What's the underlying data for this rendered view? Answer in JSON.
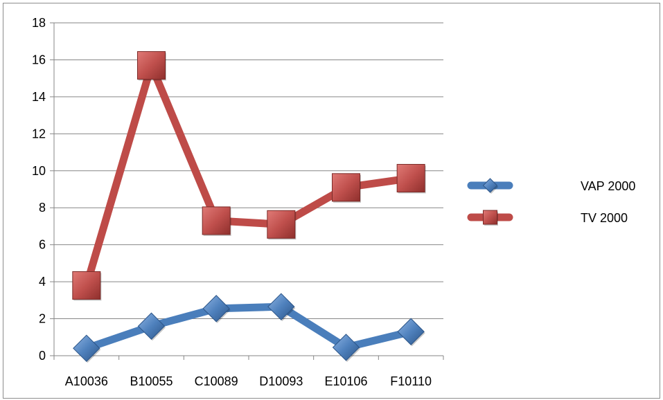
{
  "chart_data": {
    "type": "line",
    "title": "",
    "xlabel": "",
    "ylabel": "",
    "categories": [
      "A10036",
      "B10055",
      "C10089",
      "D10093",
      "E10106",
      "F10110"
    ],
    "ylim": [
      0,
      18
    ],
    "yticks": [
      0,
      2,
      4,
      6,
      8,
      10,
      12,
      14,
      16,
      18
    ],
    "grid": true,
    "legend_position": "right",
    "series": [
      {
        "name": "VAP 2000",
        "values": [
          0.4,
          1.6,
          2.55,
          2.65,
          0.45,
          1.3
        ],
        "color": "#4a7ebb",
        "marker": "diamond"
      },
      {
        "name": "TV 2000",
        "values": [
          3.8,
          15.7,
          7.3,
          7.1,
          9.1,
          9.6
        ],
        "color": "#be4b48",
        "marker": "square"
      }
    ]
  }
}
